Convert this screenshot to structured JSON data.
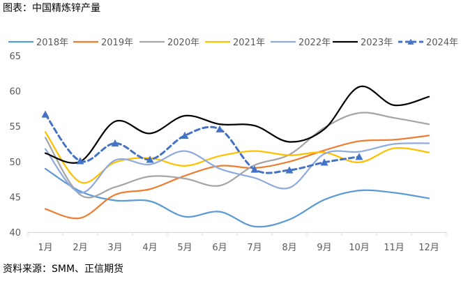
{
  "header": {
    "caption": "图表：中国精炼锌产量"
  },
  "footer": {
    "source": "资料来源：SMM、正信期货"
  },
  "chart_data": {
    "type": "line",
    "title": "",
    "xlabel": "",
    "ylabel": "",
    "ylim": [
      40,
      65
    ],
    "yticks": [
      40,
      45,
      50,
      55,
      60,
      65
    ],
    "categories": [
      "1月",
      "2月",
      "3月",
      "4月",
      "5月",
      "6月",
      "7月",
      "8月",
      "9月",
      "10月",
      "11月",
      "12月"
    ],
    "grid": false,
    "legend": "top",
    "series": [
      {
        "name": "2018年",
        "color": "#5B9BD5",
        "style": "solid",
        "values": [
          49.0,
          45.8,
          44.5,
          44.4,
          42.2,
          42.9,
          40.8,
          41.8,
          44.6,
          45.9,
          45.6,
          44.8
        ]
      },
      {
        "name": "2019年",
        "color": "#ED7D31",
        "style": "solid",
        "values": [
          43.3,
          42.0,
          45.3,
          46.1,
          48.0,
          49.4,
          49.1,
          50.0,
          51.6,
          52.9,
          53.1,
          53.7
        ]
      },
      {
        "name": "2020年",
        "color": "#A5A5A5",
        "style": "solid",
        "values": [
          53.4,
          45.3,
          46.4,
          47.9,
          47.6,
          46.6,
          49.5,
          51.0,
          54.8,
          56.9,
          56.2,
          55.3
        ]
      },
      {
        "name": "2021年",
        "color": "#FFC000",
        "style": "solid",
        "values": [
          54.2,
          47.1,
          49.9,
          50.5,
          49.4,
          50.8,
          51.5,
          50.9,
          51.3,
          49.9,
          51.9,
          51.3
        ]
      },
      {
        "name": "2022年",
        "color": "#8FAADC",
        "style": "solid",
        "values": [
          51.8,
          45.6,
          50.2,
          49.6,
          51.5,
          49.0,
          47.7,
          46.3,
          51.1,
          51.4,
          52.5,
          52.6
        ]
      },
      {
        "name": "2023年",
        "color": "#000000",
        "style": "solid",
        "values": [
          51.2,
          50.0,
          55.7,
          54.0,
          56.5,
          55.3,
          55.1,
          52.8,
          54.6,
          60.6,
          58.0,
          59.2
        ]
      },
      {
        "name": "2024年",
        "color": "#4472C4",
        "style": "dashed-triangle",
        "values": [
          56.7,
          50.1,
          52.6,
          50.3,
          53.7,
          54.6,
          48.9,
          48.8,
          49.9,
          50.7,
          null,
          null
        ]
      }
    ]
  }
}
